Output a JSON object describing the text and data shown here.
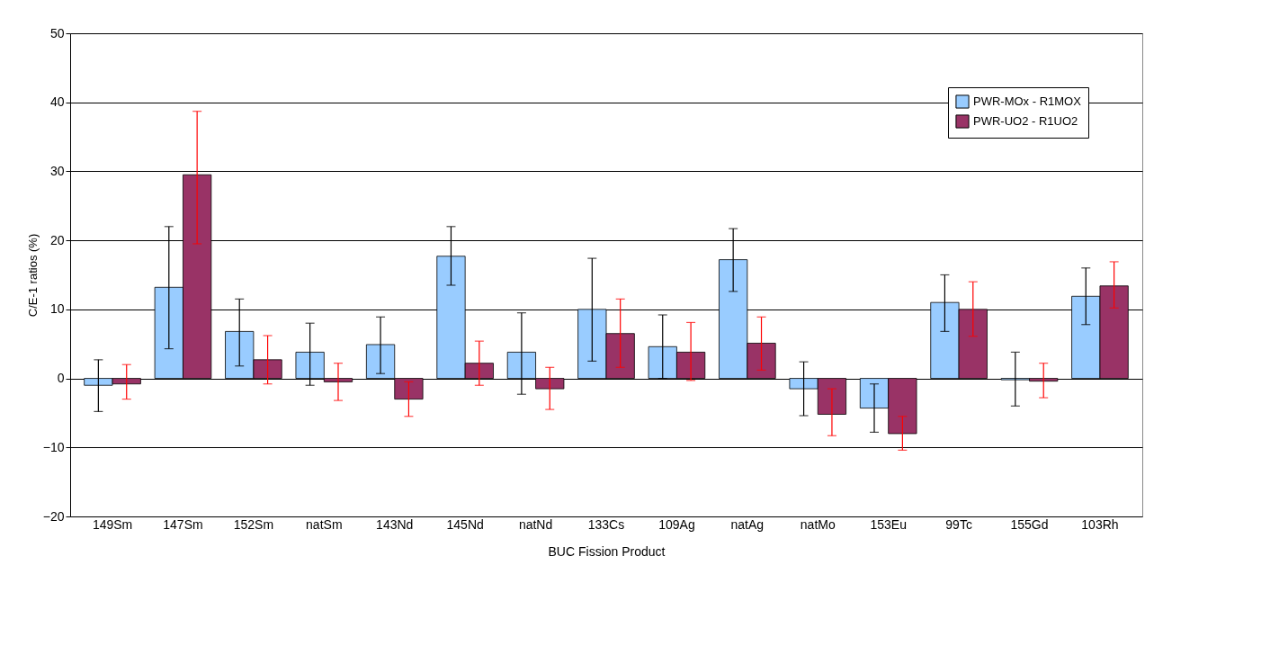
{
  "chart_data": {
    "type": "bar",
    "xlabel": "BUC Fission Product",
    "ylabel": "C/E-1 ratios (%)",
    "categories": [
      "149Sm",
      "147Sm",
      "152Sm",
      "natSm",
      "143Nd",
      "145Nd",
      "natNd",
      "133Cs",
      "109Ag",
      "natAg",
      "natMo",
      "153Eu",
      "99Tc",
      "155Gd",
      "103Rh"
    ],
    "series": [
      {
        "name": "PWR-MOx - R1MOX",
        "color": "#99ccff",
        "values": [
          -1.0,
          13.2,
          6.8,
          3.8,
          4.9,
          17.7,
          3.8,
          10.0,
          4.6,
          17.2,
          -1.5,
          -4.3,
          11.0,
          -0.2,
          11.9
        ],
        "errors": [
          [
            -4.8,
            2.7
          ],
          [
            4.3,
            22.0
          ],
          [
            1.8,
            11.5
          ],
          [
            -1.0,
            8.0
          ],
          [
            0.7,
            8.9
          ],
          [
            13.5,
            22.0
          ],
          [
            -2.3,
            9.5
          ],
          [
            2.5,
            17.4
          ],
          [
            0.0,
            9.2
          ],
          [
            12.6,
            21.7
          ],
          [
            -5.4,
            2.4
          ],
          [
            -7.8,
            -0.8
          ],
          [
            6.8,
            15.0
          ],
          [
            -4.0,
            3.8
          ],
          [
            7.8,
            16.0
          ]
        ]
      },
      {
        "name": "PWR-UO2 - R1UO2",
        "color": "#993366",
        "values": [
          -0.8,
          29.5,
          2.7,
          -0.5,
          -3.0,
          2.2,
          -1.5,
          6.5,
          3.8,
          5.1,
          -5.2,
          -8.0,
          10.0,
          -0.4,
          13.4
        ],
        "errors": [
          [
            -3.0,
            2.0
          ],
          [
            19.5,
            38.7
          ],
          [
            -0.8,
            6.2
          ],
          [
            -3.2,
            2.2
          ],
          [
            -5.5,
            -0.5
          ],
          [
            -1.0,
            5.4
          ],
          [
            -4.5,
            1.6
          ],
          [
            1.6,
            11.5
          ],
          [
            -0.3,
            8.1
          ],
          [
            1.2,
            8.9
          ],
          [
            -8.3,
            -1.5
          ],
          [
            -10.4,
            -5.5
          ],
          [
            6.1,
            14.0
          ],
          [
            -2.8,
            2.2
          ],
          [
            10.2,
            16.9
          ]
        ]
      }
    ],
    "ylim": [
      -20,
      50
    ],
    "yticks": [
      -20,
      -10,
      0,
      10,
      20,
      30,
      40,
      50
    ],
    "grid": "y",
    "legend": "top right"
  }
}
